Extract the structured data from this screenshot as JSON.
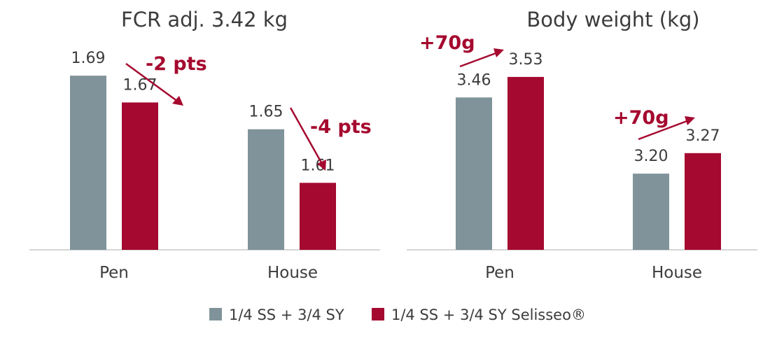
{
  "colors": {
    "gray": "#80939b",
    "red": "#a5092f",
    "axis": "#c8c8c8",
    "text": "#3c3c3c"
  },
  "legend": [
    {
      "name": "1/4 SS + 3/4 SY",
      "color": "#80939b"
    },
    {
      "name": "1/4 SS + 3/4 SY Selisseo®",
      "color": "#a5092f"
    }
  ],
  "chart_data": [
    {
      "type": "bar",
      "title": "FCR adj. 3.42 kg",
      "categories": [
        "Pen",
        "House"
      ],
      "series": [
        {
          "name": "1/4 SS + 3/4 SY",
          "values": [
            1.69,
            1.65
          ]
        },
        {
          "name": "1/4 SS + 3/4 SY Selisseo®",
          "values": [
            1.67,
            1.61
          ]
        }
      ],
      "value_labels": [
        [
          "1.69",
          "1.65"
        ],
        [
          "1.67",
          "1.61"
        ]
      ],
      "annotations": [
        "-2 pts",
        "-4 pts"
      ],
      "ylim": [
        1.56,
        1.7
      ],
      "grid": false,
      "legend_position": "bottom"
    },
    {
      "type": "bar",
      "title": "Body weight (kg)",
      "categories": [
        "Pen",
        "House"
      ],
      "series": [
        {
          "name": "1/4 SS + 3/4 SY",
          "values": [
            3.46,
            3.2
          ]
        },
        {
          "name": "1/4 SS + 3/4 SY Selisseo®",
          "values": [
            3.53,
            3.27
          ]
        }
      ],
      "value_labels": [
        [
          "3.46",
          "3.20"
        ],
        [
          "3.53",
          "3.27"
        ]
      ],
      "annotations": [
        "+70g",
        "+70g"
      ],
      "ylim": [
        2.94,
        3.58
      ],
      "grid": false,
      "legend_position": "bottom"
    }
  ]
}
